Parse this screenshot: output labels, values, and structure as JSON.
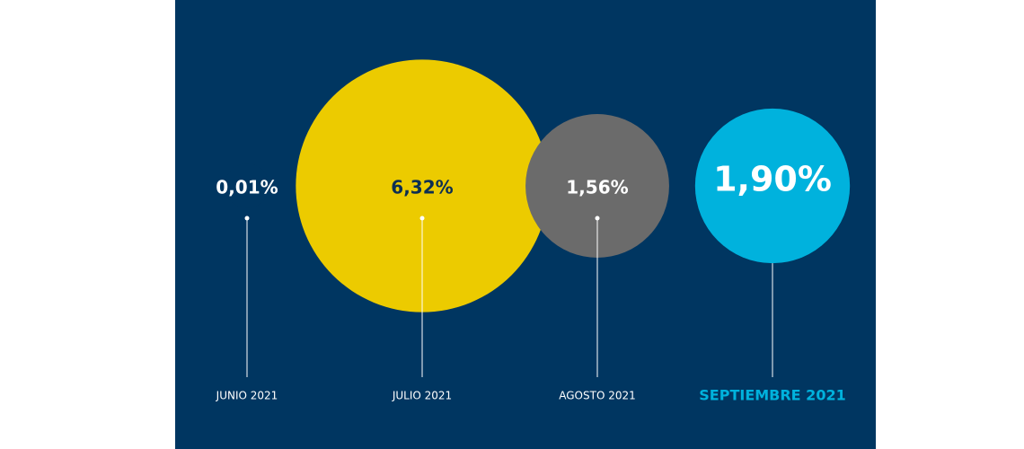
{
  "chart_data": {
    "type": "bubble",
    "categories": [
      "JUNIO 2021",
      "JULIO 2021",
      "AGOSTO 2021",
      "SEPTIEMBRE 2021"
    ],
    "values": [
      0.01,
      6.32,
      1.56,
      1.9
    ],
    "value_labels": [
      "0,01%",
      "6,32%",
      "1,56%",
      "1,90%"
    ],
    "colors": [
      "#003661",
      "#eccb00",
      "#6b6b6b",
      "#00b2dd"
    ],
    "label_colors": [
      "#ffffff",
      "#0d2f52",
      "#ffffff",
      "#ffffff"
    ],
    "category_colors": [
      "#ffffff",
      "#ffffff",
      "#ffffff",
      "#00b2dd"
    ],
    "background": "#003661"
  }
}
